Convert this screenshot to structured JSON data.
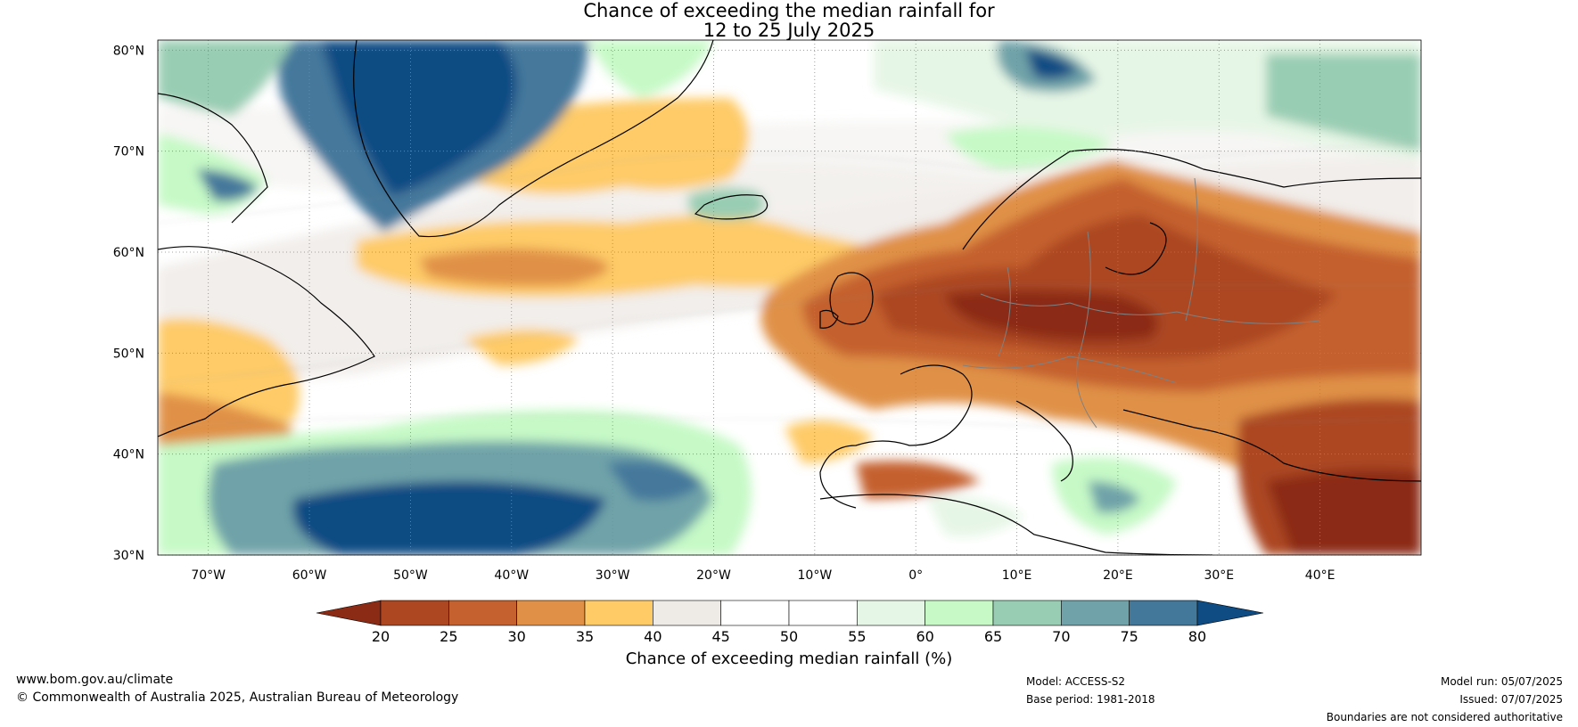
{
  "title": {
    "line1": "Chance of exceeding the median rainfall for",
    "line2": "12 to 25 July 2025"
  },
  "map": {
    "lat_labels": [
      "80°N",
      "70°N",
      "60°N",
      "50°N",
      "40°N",
      "30°N"
    ],
    "lat_values": [
      80,
      70,
      60,
      50,
      40,
      30
    ],
    "lon_labels": [
      "70°W",
      "60°W",
      "50°W",
      "40°W",
      "30°W",
      "20°W",
      "10°W",
      "0°",
      "10°E",
      "20°E",
      "30°E",
      "40°E"
    ],
    "lon_values": [
      -70,
      -60,
      -50,
      -40,
      -30,
      -20,
      -10,
      0,
      10,
      20,
      30,
      40
    ],
    "lon_range": [
      -75,
      50
    ],
    "lat_range": [
      30,
      81
    ]
  },
  "legend": {
    "ticks": [
      "20",
      "25",
      "30",
      "35",
      "40",
      "45",
      "50",
      "55",
      "60",
      "65",
      "70",
      "75",
      "80"
    ],
    "colors": [
      "#8b2b16",
      "#ac4722",
      "#c4612f",
      "#e09147",
      "#fecb67",
      "#eeeae6",
      "#ffffff",
      "#ffffff",
      "#e6f6e6",
      "#c6f9c6",
      "#99cdb3",
      "#6fa3a9",
      "#44789b",
      "#0f4c83"
    ],
    "label": "Chance of exceeding median rainfall (%)"
  },
  "footer": {
    "website": "www.bom.gov.au/climate",
    "copyright": "© Commonwealth of Australia 2025, Australian Bureau of Meteorology",
    "model": "Model: ACCESS-S2",
    "base_period": "Base period: 1981-2018",
    "model_run": "Model run: 05/07/2025",
    "issued": "Issued: 07/07/2025",
    "disclaimer": "Boundaries are not considered authoritative"
  }
}
